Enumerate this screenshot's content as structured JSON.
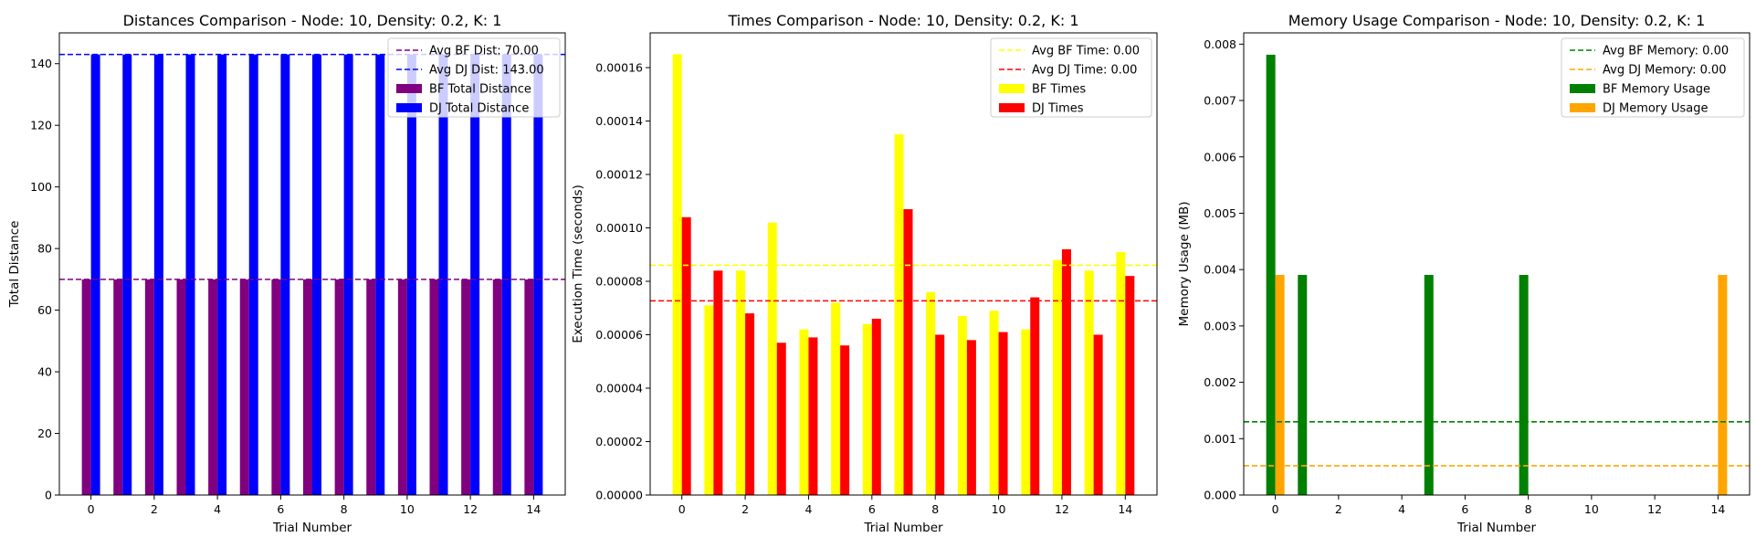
{
  "chart_data": [
    {
      "type": "bar",
      "title": "Distances Comparison - Node: 10, Density: 0.2, K: 1",
      "xlabel": "Trial Number",
      "ylabel": "Total Distance",
      "x": [
        0,
        1,
        2,
        3,
        4,
        5,
        6,
        7,
        8,
        9,
        10,
        11,
        12,
        13,
        14
      ],
      "xticks": [
        0,
        2,
        4,
        6,
        8,
        10,
        12,
        14
      ],
      "xlim": [
        -1,
        15
      ],
      "ylim": [
        0,
        150
      ],
      "yticks": [
        "0",
        "20",
        "40",
        "60",
        "80",
        "100",
        "120",
        "140"
      ],
      "series": [
        {
          "name": "BF Total Distance",
          "color": "#800080",
          "values": [
            70,
            70,
            70,
            70,
            70,
            70,
            70,
            70,
            70,
            70,
            70,
            70,
            70,
            70,
            70
          ]
        },
        {
          "name": "DJ Total Distance",
          "color": "#0000ff",
          "values": [
            143,
            143,
            143,
            143,
            143,
            143,
            143,
            143,
            143,
            143,
            143,
            143,
            143,
            143,
            143
          ]
        }
      ],
      "avg_lines": [
        {
          "label": "Avg BF Dist: 70.00",
          "value": 70,
          "color": "#800080"
        },
        {
          "label": "Avg DJ Dist: 143.00",
          "value": 143,
          "color": "#0000ff"
        }
      ],
      "legend": "top-right",
      "grid": false
    },
    {
      "type": "bar",
      "title": "Times Comparison - Node: 10, Density: 0.2, K: 1",
      "xlabel": "Trial Number",
      "ylabel": "Execution Time (seconds)",
      "x": [
        0,
        1,
        2,
        3,
        4,
        5,
        6,
        7,
        8,
        9,
        10,
        11,
        12,
        13,
        14
      ],
      "xticks": [
        0,
        2,
        4,
        6,
        8,
        10,
        12,
        14
      ],
      "xlim": [
        -1,
        15
      ],
      "ylim": [
        0,
        0.000173
      ],
      "yticks": [
        "0.00000",
        "0.00002",
        "0.00004",
        "0.00006",
        "0.00008",
        "0.00010",
        "0.00012",
        "0.00014",
        "0.00016"
      ],
      "series": [
        {
          "name": "BF Times",
          "color": "#ffff00",
          "values": [
            0.000165,
            7.1e-05,
            8.4e-05,
            0.000102,
            6.2e-05,
            7.2e-05,
            6.4e-05,
            0.000135,
            7.6e-05,
            6.7e-05,
            6.9e-05,
            6.2e-05,
            8.8e-05,
            8.4e-05,
            9.1e-05
          ]
        },
        {
          "name": "DJ Times",
          "color": "#ff0000",
          "values": [
            0.000104,
            8.4e-05,
            6.8e-05,
            5.7e-05,
            5.9e-05,
            5.6e-05,
            6.6e-05,
            0.000107,
            6e-05,
            5.8e-05,
            6.1e-05,
            7.4e-05,
            9.2e-05,
            6e-05,
            8.2e-05
          ]
        }
      ],
      "avg_lines": [
        {
          "label": "Avg BF Time: 0.00",
          "value": 8.6e-05,
          "color": "#ffff00"
        },
        {
          "label": "Avg DJ Time: 0.00",
          "value": 7.27e-05,
          "color": "#ff0000"
        }
      ],
      "legend": "top-right",
      "grid": false
    },
    {
      "type": "bar",
      "title": "Memory Usage Comparison - Node: 10, Density: 0.2, K: 1",
      "xlabel": "Trial Number",
      "ylabel": "Memory Usage (MB)",
      "x": [
        0,
        1,
        2,
        3,
        4,
        5,
        6,
        7,
        8,
        9,
        10,
        11,
        12,
        13,
        14
      ],
      "xticks": [
        0,
        2,
        4,
        6,
        8,
        10,
        12,
        14
      ],
      "xlim": [
        -1,
        15
      ],
      "ylim": [
        0,
        0.0082
      ],
      "yticks": [
        "0.000",
        "0.001",
        "0.002",
        "0.003",
        "0.004",
        "0.005",
        "0.006",
        "0.007",
        "0.008"
      ],
      "series": [
        {
          "name": "BF Memory Usage",
          "color": "#008000",
          "values": [
            0.0078125,
            0.00390625,
            0,
            0,
            0,
            0.00390625,
            0,
            0,
            0.00390625,
            0,
            0,
            0,
            0,
            0,
            0
          ]
        },
        {
          "name": "DJ Memory Usage",
          "color": "#ffa500",
          "values": [
            0.00390625,
            0,
            0,
            0,
            0,
            0,
            0,
            0,
            0,
            0,
            0,
            0,
            0,
            0,
            0.00390625
          ]
        }
      ],
      "avg_lines": [
        {
          "label": "Avg BF Memory: 0.00",
          "value": 0.0013,
          "color": "#008000"
        },
        {
          "label": "Avg DJ Memory: 0.00",
          "value": 0.00052,
          "color": "#ffa500"
        }
      ],
      "legend": "top-right",
      "grid": false
    }
  ]
}
